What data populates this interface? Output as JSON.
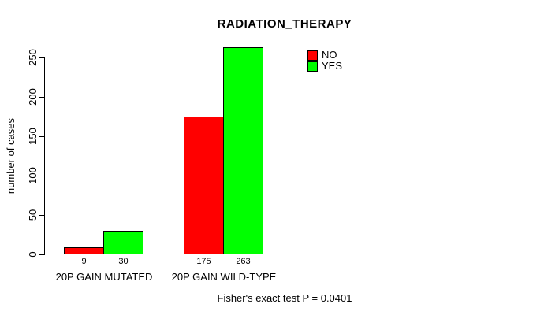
{
  "title": "RADIATION_THERAPY",
  "y_axis": {
    "label": "number of cases",
    "ticks": [
      0,
      50,
      100,
      150,
      200,
      250
    ]
  },
  "footer_note": "Fisher's exact test P = 0.0401",
  "colors": {
    "no": "#FF0000",
    "yes": "#00FF00",
    "axis": "#000000",
    "background": "#FFFFFF"
  },
  "chart_data": {
    "type": "bar",
    "title": "RADIATION_THERAPY",
    "xlabel": "",
    "ylabel": "number of cases",
    "categories": [
      "20P GAIN MUTATED",
      "20P GAIN WILD-TYPE"
    ],
    "series": [
      {
        "name": "NO",
        "color": "#FF0000",
        "values": [
          9,
          175
        ]
      },
      {
        "name": "YES",
        "color": "#00FF00",
        "values": [
          30,
          263
        ]
      }
    ],
    "values_shown_below_bars": true,
    "yticks": [
      0,
      50,
      100,
      150,
      200,
      250
    ],
    "ylim": [
      0,
      265
    ],
    "grid": false,
    "legend_position": "top-right",
    "annotation": "Fisher's exact test P = 0.0401"
  }
}
